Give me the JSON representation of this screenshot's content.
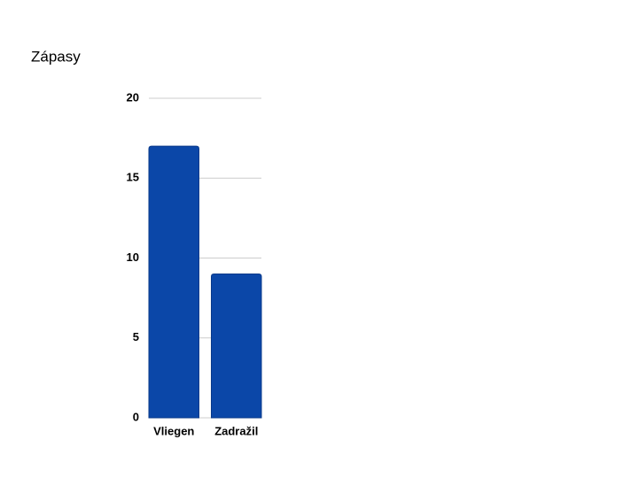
{
  "chart_data": {
    "type": "bar",
    "title": "Zápasy",
    "categories": [
      "Vliegen",
      "Zadražil"
    ],
    "values": [
      17,
      9
    ],
    "color": "#0b47a8",
    "ylim": [
      0,
      20
    ],
    "yticks": [
      0,
      5,
      10,
      15,
      20
    ],
    "grid": true
  }
}
